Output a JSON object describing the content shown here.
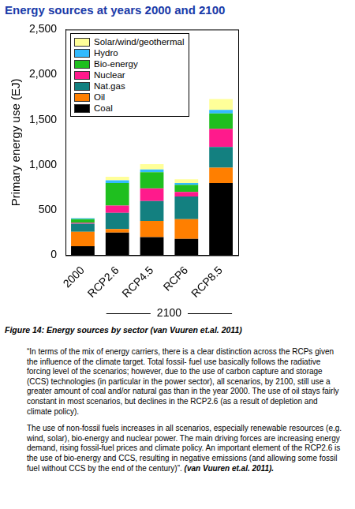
{
  "chart_data": {
    "type": "bar",
    "title": "Energy sources at years 2000 and 2100",
    "stacked": true,
    "categories": [
      "2000",
      "RCP2.6",
      "RCP4.5",
      "RCP6",
      "RCP8.5"
    ],
    "series": [
      {
        "name": "Coal",
        "color": "#000000",
        "values": [
          100,
          250,
          200,
          180,
          800
        ]
      },
      {
        "name": "Oil",
        "color": "#ff7f00",
        "values": [
          160,
          40,
          180,
          220,
          170
        ]
      },
      {
        "name": "Nat.gas",
        "color": "#138080",
        "values": [
          90,
          180,
          220,
          250,
          230
        ]
      },
      {
        "name": "Nuclear",
        "color": "#ff1a8c",
        "values": [
          10,
          80,
          140,
          50,
          200
        ]
      },
      {
        "name": "Bio-energy",
        "color": "#1fbf1f",
        "values": [
          40,
          250,
          180,
          80,
          170
        ]
      },
      {
        "name": "Hydro",
        "color": "#33bbff",
        "values": [
          10,
          30,
          30,
          20,
          40
        ]
      },
      {
        "name": "Solar/wind/geothermal",
        "color": "#ffff99",
        "values": [
          5,
          40,
          60,
          40,
          120
        ]
      }
    ],
    "ylabel": "Primary energy use (EJ)",
    "ylim": [
      0,
      2500
    ],
    "yticks": [
      0,
      500,
      1000,
      1500,
      2000,
      2500
    ],
    "grid": false,
    "legend": "upper left",
    "annotations": [
      {
        "text": "2100",
        "from": "RCP2.6",
        "to": "RCP8.5"
      }
    ]
  },
  "caption": "Figure 14: Energy sources by sector (van Vuuren et.al. 2011)",
  "paragraphs": [
    "“In terms of the mix of energy carriers, there is a clear distinction across the RCPs given the influence of the climate target. Total fossil- fuel use basically follows the radiative forcing level of the scenarios; however, due to the use of carbon capture and storage (CCS) technologies (in particular in the power sector), all scenarios, by 2100, still use a greater amount of coal and/or natural gas than in the year 2000. The use of oil stays fairly constant in most scenarios, but declines in the RCP2.6 (as a result of depletion and climate policy).",
    "The use of non-fossil fuels increases in all scenarios, especially renewable resources (e.g. wind, solar), bio-energy and nuclear power. The main driving forces are increasing energy demand, rising fossil-fuel prices and climate policy. An important element of the RCP2.6 is the use of bio-energy and CCS, resulting in negative emissions (and allowing some fossil fuel without CCS by the end of the century)”. "
  ],
  "citation": "(van Vuuren et.al. 2011)."
}
